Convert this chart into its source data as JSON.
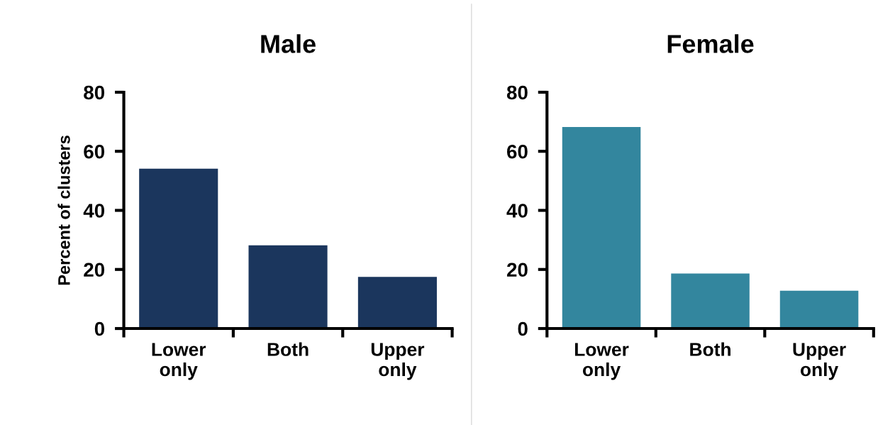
{
  "chart_data": [
    {
      "type": "bar",
      "title": "Male",
      "ylabel": "Percent of clusters",
      "categories": [
        "Lower\nonly",
        "Both",
        "Upper\nonly"
      ],
      "values": [
        54.1,
        28.2,
        17.5
      ],
      "color": "#1b365d",
      "ylim": [
        0,
        80
      ],
      "yticks": [
        0,
        20,
        40,
        60,
        80
      ],
      "grid": false
    },
    {
      "type": "bar",
      "title": "Female",
      "categories": [
        "Lower\nonly",
        "Both",
        "Upper\nonly"
      ],
      "values": [
        68.2,
        18.6,
        12.8
      ],
      "color": "#33869e",
      "ylim": [
        0,
        80
      ],
      "yticks": [
        0,
        20,
        40,
        60,
        80
      ],
      "grid": false
    }
  ]
}
